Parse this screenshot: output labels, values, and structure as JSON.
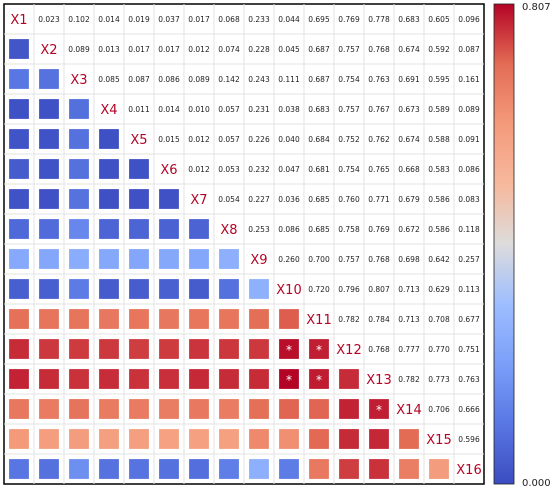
{
  "chart_data": {
    "type": "heatmap",
    "variables": [
      "X1",
      "X2",
      "X3",
      "X4",
      "X5",
      "X6",
      "X7",
      "X8",
      "X9",
      "X10",
      "X11",
      "X12",
      "X13",
      "X14",
      "X15",
      "X16"
    ],
    "upper_triangle_values": [
      [
        "",
        "0.023",
        "0.102",
        "0.014",
        "0.019",
        "0.037",
        "0.017",
        "0.068",
        "0.233",
        "0.044",
        "0.695",
        "0.769",
        "0.778",
        "0.683",
        "0.605",
        "0.096"
      ],
      [
        "",
        "",
        "0.089",
        "0.013",
        "0.017",
        "0.017",
        "0.012",
        "0.074",
        "0.228",
        "0.045",
        "0.687",
        "0.757",
        "0.768",
        "0.674",
        "0.592",
        "0.087"
      ],
      [
        "",
        "",
        "",
        "0.085",
        "0.087",
        "0.086",
        "0.089",
        "0.142",
        "0.243",
        "0.111",
        "0.687",
        "0.754",
        "0.763",
        "0.691",
        "0.595",
        "0.161"
      ],
      [
        "",
        "",
        "",
        "",
        "0.011",
        "0.014",
        "0.010",
        "0.057",
        "0.231",
        "0.038",
        "0.683",
        "0.757",
        "0.767",
        "0.673",
        "0.589",
        "0.089"
      ],
      [
        "",
        "",
        "",
        "",
        "",
        "0.015",
        "0.012",
        "0.057",
        "0.226",
        "0.040",
        "0.684",
        "0.752",
        "0.762",
        "0.674",
        "0.588",
        "0.091"
      ],
      [
        "",
        "",
        "",
        "",
        "",
        "",
        "0.012",
        "0.053",
        "0.232",
        "0.047",
        "0.681",
        "0.754",
        "0.765",
        "0.668",
        "0.583",
        "0.086"
      ],
      [
        "",
        "",
        "",
        "",
        "",
        "",
        "",
        "0.054",
        "0.227",
        "0.036",
        "0.685",
        "0.760",
        "0.771",
        "0.679",
        "0.586",
        "0.083"
      ],
      [
        "",
        "",
        "",
        "",
        "",
        "",
        "",
        "",
        "0.253",
        "0.086",
        "0.685",
        "0.758",
        "0.769",
        "0.672",
        "0.586",
        "0.118"
      ],
      [
        "",
        "",
        "",
        "",
        "",
        "",
        "",
        "",
        "",
        "0.260",
        "0.700",
        "0.757",
        "0.768",
        "0.698",
        "0.642",
        "0.257"
      ],
      [
        "",
        "",
        "",
        "",
        "",
        "",
        "",
        "",
        "",
        "",
        "0.720",
        "0.796",
        "0.807",
        "0.713",
        "0.629",
        "0.113"
      ],
      [
        "",
        "",
        "",
        "",
        "",
        "",
        "",
        "",
        "",
        "",
        "",
        "0.782",
        "0.784",
        "0.713",
        "0.708",
        "0.677"
      ],
      [
        "",
        "",
        "",
        "",
        "",
        "",
        "",
        "",
        "",
        "",
        "",
        "",
        "0.768",
        "0.777",
        "0.770",
        "0.751"
      ],
      [
        "",
        "",
        "",
        "",
        "",
        "",
        "",
        "",
        "",
        "",
        "",
        "",
        "",
        "0.782",
        "0.773",
        "0.763"
      ],
      [
        "",
        "",
        "",
        "",
        "",
        "",
        "",
        "",
        "",
        "",
        "",
        "",
        "",
        "",
        "0.706",
        "0.666"
      ],
      [
        "",
        "",
        "",
        "",
        "",
        "",
        "",
        "",
        "",
        "",
        "",
        "",
        "",
        "",
        "",
        "0.596"
      ],
      [
        "",
        "",
        "",
        "",
        "",
        "",
        "",
        "",
        "",
        "",
        "",
        "",
        "",
        "",
        "",
        ""
      ]
    ],
    "significance_markers": [
      {
        "row": "X12",
        "col": "X10",
        "mark": "*"
      },
      {
        "row": "X12",
        "col": "X11",
        "mark": "*"
      },
      {
        "row": "X13",
        "col": "X10",
        "mark": "*"
      },
      {
        "row": "X13",
        "col": "X11",
        "mark": "*"
      },
      {
        "row": "X14",
        "col": "X13",
        "mark": "*"
      }
    ],
    "lower_triangle": "colored squares mirroring upper-triangle values",
    "colorbar": {
      "min": 0.0,
      "max": 0.807,
      "min_label": "0.000",
      "max_label": "0.807",
      "placement": "right"
    },
    "colors": {
      "low": "#3b4cc0",
      "mid": "#dddcdc",
      "high": "#b40426",
      "diag_text": "#b40426",
      "grid": "#e3e3e3"
    }
  }
}
